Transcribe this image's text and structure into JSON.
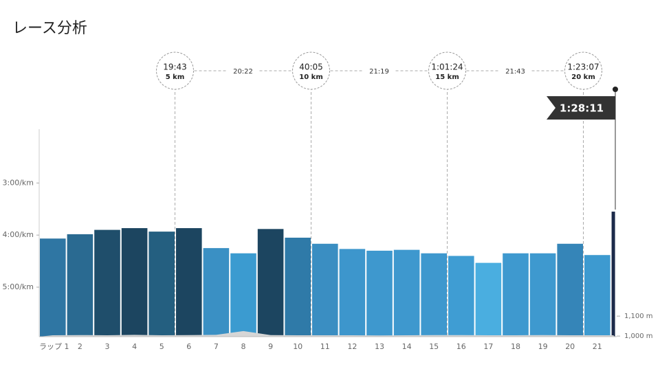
{
  "chart_data": {
    "type": "bar",
    "title": "レース分析",
    "categories": [
      "ラップ 1",
      "2",
      "3",
      "4",
      "5",
      "6",
      "7",
      "8",
      "9",
      "10",
      "11",
      "12",
      "13",
      "14",
      "15",
      "16",
      "17",
      "18",
      "19",
      "20",
      "21",
      null
    ],
    "values": [
      244,
      239,
      234,
      232,
      236,
      232,
      255,
      261,
      233,
      243,
      250,
      256,
      258,
      257,
      261,
      264,
      272,
      261,
      261,
      250,
      263,
      213
    ],
    "colors": [
      "#2f76a3",
      "#2a6a91",
      "#1f4e6b",
      "#1c4560",
      "#245f80",
      "#1c4560",
      "#3a90c4",
      "#3b9bd0",
      "#1c4560",
      "#2f7aa8",
      "#3a8ec2",
      "#3d96cc",
      "#3e98ce",
      "#3e98ce",
      "#3e98ce",
      "#3f9dd3",
      "#4aaee0",
      "#3e99cf",
      "#3e99cf",
      "#3585b8",
      "#3d9ad0",
      "#1c2a4a"
    ],
    "ylim": [
      357,
      118
    ],
    "yticks": [
      {
        "value": 180,
        "label": "3:00/km"
      },
      {
        "value": 240,
        "label": "4:00/km"
      },
      {
        "value": 300,
        "label": "5:00/km"
      }
    ],
    "elevation": {
      "color": "#d6d6d6",
      "axis": "y2",
      "values": [
        1004,
        1005,
        1004,
        1006,
        1004,
        1005,
        1006,
        1025,
        1005,
        1004,
        1004,
        1004,
        1003,
        1004,
        1005,
        1005,
        1004,
        1004,
        1005,
        1004,
        1004,
        1004
      ]
    },
    "y2lim": [
      997,
      2038
    ],
    "y2ticks": [
      {
        "value": 1100,
        "label": "1,100 m"
      },
      {
        "value": 1000,
        "label": "1,000 m"
      }
    ],
    "splits": [
      {
        "time": "19:43",
        "distance": "5 km"
      },
      {
        "time": "40:05",
        "distance": "10 km"
      },
      {
        "time": "1:01:24",
        "distance": "15 km"
      },
      {
        "time": "1:23:07",
        "distance": "20 km"
      }
    ],
    "split_intervals": [
      "20:22",
      "21:19",
      "21:43"
    ],
    "finish": "1:28:11"
  }
}
